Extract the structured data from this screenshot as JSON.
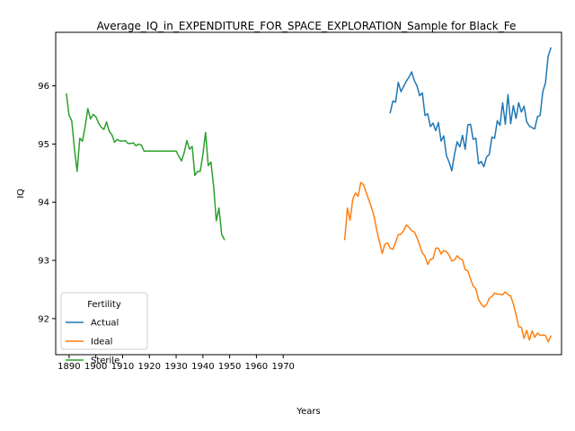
{
  "chart_data": {
    "type": "line",
    "title": "Average_IQ_in_EXPENDITURE_FOR_SPACE_EXPLORATION_Sample for Black_Fe",
    "xlabel": "Years",
    "ylabel": "IQ",
    "xlim": [
      1885,
      2074
    ],
    "ylim": [
      91.38,
      96.92
    ],
    "xticks": [
      1890,
      1900,
      1910,
      1920,
      1930,
      1940,
      1950,
      1960,
      1970
    ],
    "yticks": [
      92,
      93,
      94,
      95,
      96
    ],
    "grid": false,
    "legend": {
      "title": "Fertility",
      "position": "lower-left"
    },
    "series": [
      {
        "name": "Actual",
        "color": "#1f77b4",
        "x": [
          2010,
          2011,
          2012,
          2013,
          2014,
          2015,
          2016,
          2017,
          2018,
          2019,
          2020,
          2021,
          2022,
          2023,
          2024,
          2025,
          2026,
          2027,
          2028,
          2029,
          2030,
          2031,
          2032,
          2033,
          2034,
          2035,
          2036,
          2037,
          2038,
          2039,
          2040,
          2041,
          2042,
          2043,
          2044,
          2045,
          2046,
          2047,
          2048,
          2049,
          2050,
          2051,
          2052,
          2053,
          2054,
          2055,
          2056,
          2057,
          2058,
          2059,
          2060,
          2061,
          2062,
          2063,
          2064,
          2065,
          2066,
          2067,
          2068,
          2069,
          2070
        ],
        "y": [
          95.54,
          95.74,
          95.72,
          96.06,
          95.9,
          95.99,
          96.08,
          96.15,
          96.24,
          96.09,
          96.0,
          95.83,
          95.88,
          95.49,
          95.52,
          95.3,
          95.36,
          95.23,
          95.37,
          95.05,
          95.14,
          94.8,
          94.69,
          94.54,
          94.82,
          95.04,
          94.95,
          95.15,
          94.91,
          95.33,
          95.34,
          95.08,
          95.1,
          94.66,
          94.7,
          94.61,
          94.78,
          94.82,
          95.12,
          95.1,
          95.4,
          95.32,
          95.71,
          95.34,
          95.85,
          95.35,
          95.66,
          95.44,
          95.71,
          95.55,
          95.65,
          95.38,
          95.31,
          95.28,
          95.26,
          95.47,
          95.49,
          95.9,
          96.05,
          96.51,
          96.65
        ]
      },
      {
        "name": "Ideal",
        "color": "#ff7f0e",
        "x": [
          1993,
          1994,
          1995,
          1996,
          1997,
          1998,
          1999,
          2000,
          2001,
          2002,
          2003,
          2004,
          2005,
          2006,
          2007,
          2008,
          2009,
          2010,
          2011,
          2012,
          2013,
          2014,
          2015,
          2016,
          2017,
          2018,
          2019,
          2020,
          2021,
          2022,
          2023,
          2024,
          2025,
          2026,
          2027,
          2028,
          2029,
          2030,
          2031,
          2032,
          2033,
          2034,
          2035,
          2036,
          2037,
          2038,
          2039,
          2040,
          2041,
          2042,
          2043,
          2044,
          2045,
          2046,
          2047,
          2048,
          2049,
          2050,
          2051,
          2052,
          2053,
          2054,
          2055,
          2056,
          2057,
          2058,
          2059,
          2060,
          2061,
          2062,
          2063,
          2064,
          2065,
          2066,
          2067,
          2068,
          2069,
          2070
        ],
        "y": [
          93.36,
          93.9,
          93.69,
          94.05,
          94.16,
          94.1,
          94.34,
          94.3,
          94.17,
          94.04,
          93.91,
          93.75,
          93.51,
          93.32,
          93.12,
          93.28,
          93.3,
          93.21,
          93.19,
          93.31,
          93.44,
          93.45,
          93.51,
          93.61,
          93.57,
          93.51,
          93.49,
          93.39,
          93.26,
          93.13,
          93.07,
          92.93,
          93.02,
          93.03,
          93.21,
          93.21,
          93.11,
          93.17,
          93.15,
          93.09,
          92.99,
          93.01,
          93.08,
          93.03,
          93.01,
          92.84,
          92.82,
          92.68,
          92.56,
          92.51,
          92.33,
          92.25,
          92.2,
          92.24,
          92.35,
          92.38,
          92.44,
          92.42,
          92.42,
          92.41,
          92.46,
          92.41,
          92.39,
          92.25,
          92.07,
          91.86,
          91.85,
          91.66,
          91.8,
          91.63,
          91.79,
          91.68,
          91.75,
          91.71,
          91.72,
          91.71,
          91.6,
          91.7
        ]
      },
      {
        "name": "Sterile",
        "color": "#2ca02c",
        "x": [
          1889,
          1890,
          1891,
          1892,
          1893,
          1894,
          1895,
          1896,
          1897,
          1898,
          1899,
          1900,
          1901,
          1902,
          1903,
          1904,
          1905,
          1906,
          1907,
          1908,
          1909,
          1910,
          1911,
          1912,
          1913,
          1914,
          1915,
          1916,
          1917,
          1918,
          1919,
          1920,
          1921,
          1922,
          1923,
          1924,
          1925,
          1926,
          1927,
          1928,
          1929,
          1930,
          1931,
          1932,
          1933,
          1934,
          1935,
          1936,
          1937,
          1938,
          1939,
          1940,
          1941,
          1942,
          1943,
          1944,
          1945,
          1946,
          1947,
          1948,
          1949
        ],
        "y": [
          95.86,
          95.49,
          95.4,
          94.92,
          94.53,
          95.1,
          95.05,
          95.3,
          95.61,
          95.43,
          95.51,
          95.47,
          95.36,
          95.29,
          95.25,
          95.38,
          95.22,
          95.16,
          95.03,
          95.08,
          95.05,
          95.05,
          95.06,
          95.01,
          95.01,
          95.02,
          94.97,
          95.0,
          94.98,
          94.88,
          94.88,
          94.88,
          94.88,
          94.88,
          94.88,
          94.88,
          94.88,
          94.88,
          94.88,
          94.88,
          94.88,
          94.88,
          94.79,
          94.71,
          94.85,
          95.06,
          94.91,
          94.96,
          94.46,
          94.53,
          94.53,
          94.82,
          95.2,
          94.63,
          94.69,
          94.28,
          93.68,
          93.9,
          93.45,
          93.36,
          null
        ]
      }
    ]
  }
}
